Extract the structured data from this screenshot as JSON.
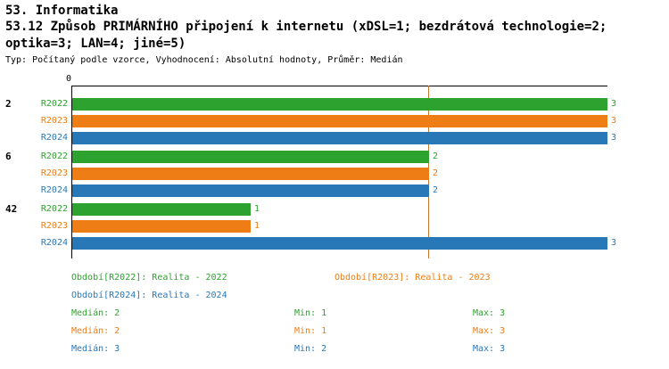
{
  "header": {
    "section_title": "53. Informatika",
    "question_title": "53.12 Způsob PRIMÁRNÍHO připojení k internetu (xDSL=1; bezdrátová technologie=2; optika=3; LAN=4; jiné=5)",
    "meta": "Typ: Počítaný podle vzorce, Vyhodnocení: Absolutní hodnoty, Průměr: Medián"
  },
  "chart_data": {
    "type": "bar",
    "orientation": "horizontal",
    "title": "53.12 Způsob PRIMÁRNÍHO připojení k internetu",
    "origin_label": "0",
    "xlim": [
      0,
      3
    ],
    "grid": false,
    "categories": [
      "2",
      "6",
      "42"
    ],
    "series": [
      {
        "name": "R2022",
        "color": "#2EA22E",
        "values": [
          3,
          2,
          1
        ]
      },
      {
        "name": "R2023",
        "color": "#EE7D16",
        "values": [
          3,
          2,
          1
        ]
      },
      {
        "name": "R2024",
        "color": "#2878B8",
        "values": [
          3,
          2,
          3
        ]
      }
    ],
    "reference_line": {
      "value": 2,
      "color": "#C8782A"
    }
  },
  "legend": {
    "periods": [
      {
        "label": "Období[R2022]: Realita - 2022",
        "color": "#2EA22E"
      },
      {
        "label": "Období[R2023]: Realita - 2023",
        "color": "#EE7D16"
      },
      {
        "label": "Období[R2024]: Realita - 2024",
        "color": "#2878B8"
      }
    ],
    "stats": [
      {
        "median": "Medián: 2",
        "min": "Min: 1",
        "max": "Max: 3",
        "color": "#2EA22E"
      },
      {
        "median": "Medián: 2",
        "min": "Min: 1",
        "max": "Max: 3",
        "color": "#EE7D16"
      },
      {
        "median": "Medián: 3",
        "min": "Min: 2",
        "max": "Max: 3",
        "color": "#2878B8"
      }
    ]
  }
}
